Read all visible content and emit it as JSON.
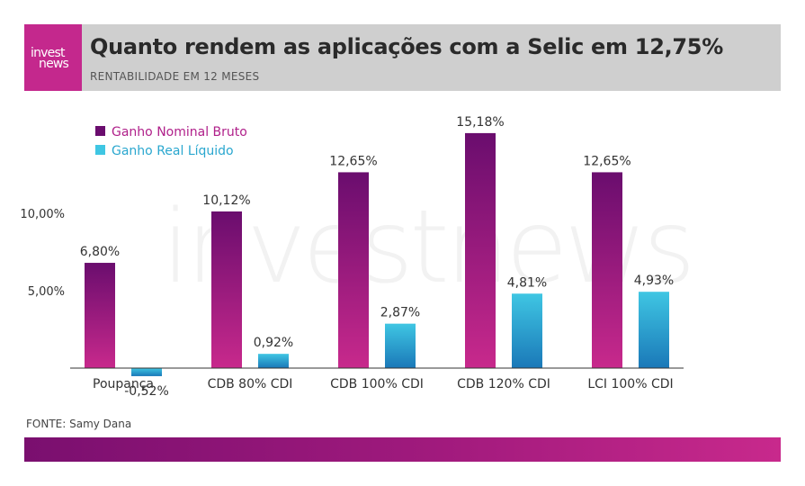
{
  "header": {
    "logo_text_top": "invest",
    "logo_text_bottom": "news",
    "title": "Quanto rendem as aplicações com a Selic em 12,75%",
    "subtitle": "RENTABILIDADE EM 12 MESES"
  },
  "watermark_text": "investnews",
  "source": "FONTE: Samy Dana",
  "colors": {
    "header_band": "#cfcfcf",
    "logo_bg": "#c4288d",
    "nominal_top": "#6a0d6e",
    "nominal_bottom": "#c8298c",
    "real_top": "#3fc6e3",
    "real_bottom": "#1a78b8",
    "legend_nominal_text": "#b0208a",
    "legend_real_text": "#2aa7cf"
  },
  "chart_data": {
    "type": "bar",
    "categories": [
      "Poupança",
      "CDB 80% CDI",
      "CDB 100% CDI",
      "CDB 120% CDI",
      "LCI 100% CDI"
    ],
    "series": [
      {
        "name": "Ganho Nominal Bruto",
        "values": [
          6.8,
          10.12,
          12.65,
          15.18,
          12.65
        ],
        "labels": [
          "6,80%",
          "10,12%",
          "12,65%",
          "15,18%",
          "12,65%"
        ]
      },
      {
        "name": "Ganho Real Líquido",
        "values": [
          -0.52,
          0.92,
          2.87,
          4.81,
          4.93
        ],
        "labels": [
          "-0,52%",
          "0,92%",
          "2,87%",
          "4,81%",
          "4,93%"
        ]
      }
    ],
    "yticks": [
      5,
      10
    ],
    "ytick_labels": [
      "5,00%",
      "10,00%"
    ],
    "ylim": [
      0,
      16
    ],
    "legend": "top-left",
    "grid": false
  }
}
